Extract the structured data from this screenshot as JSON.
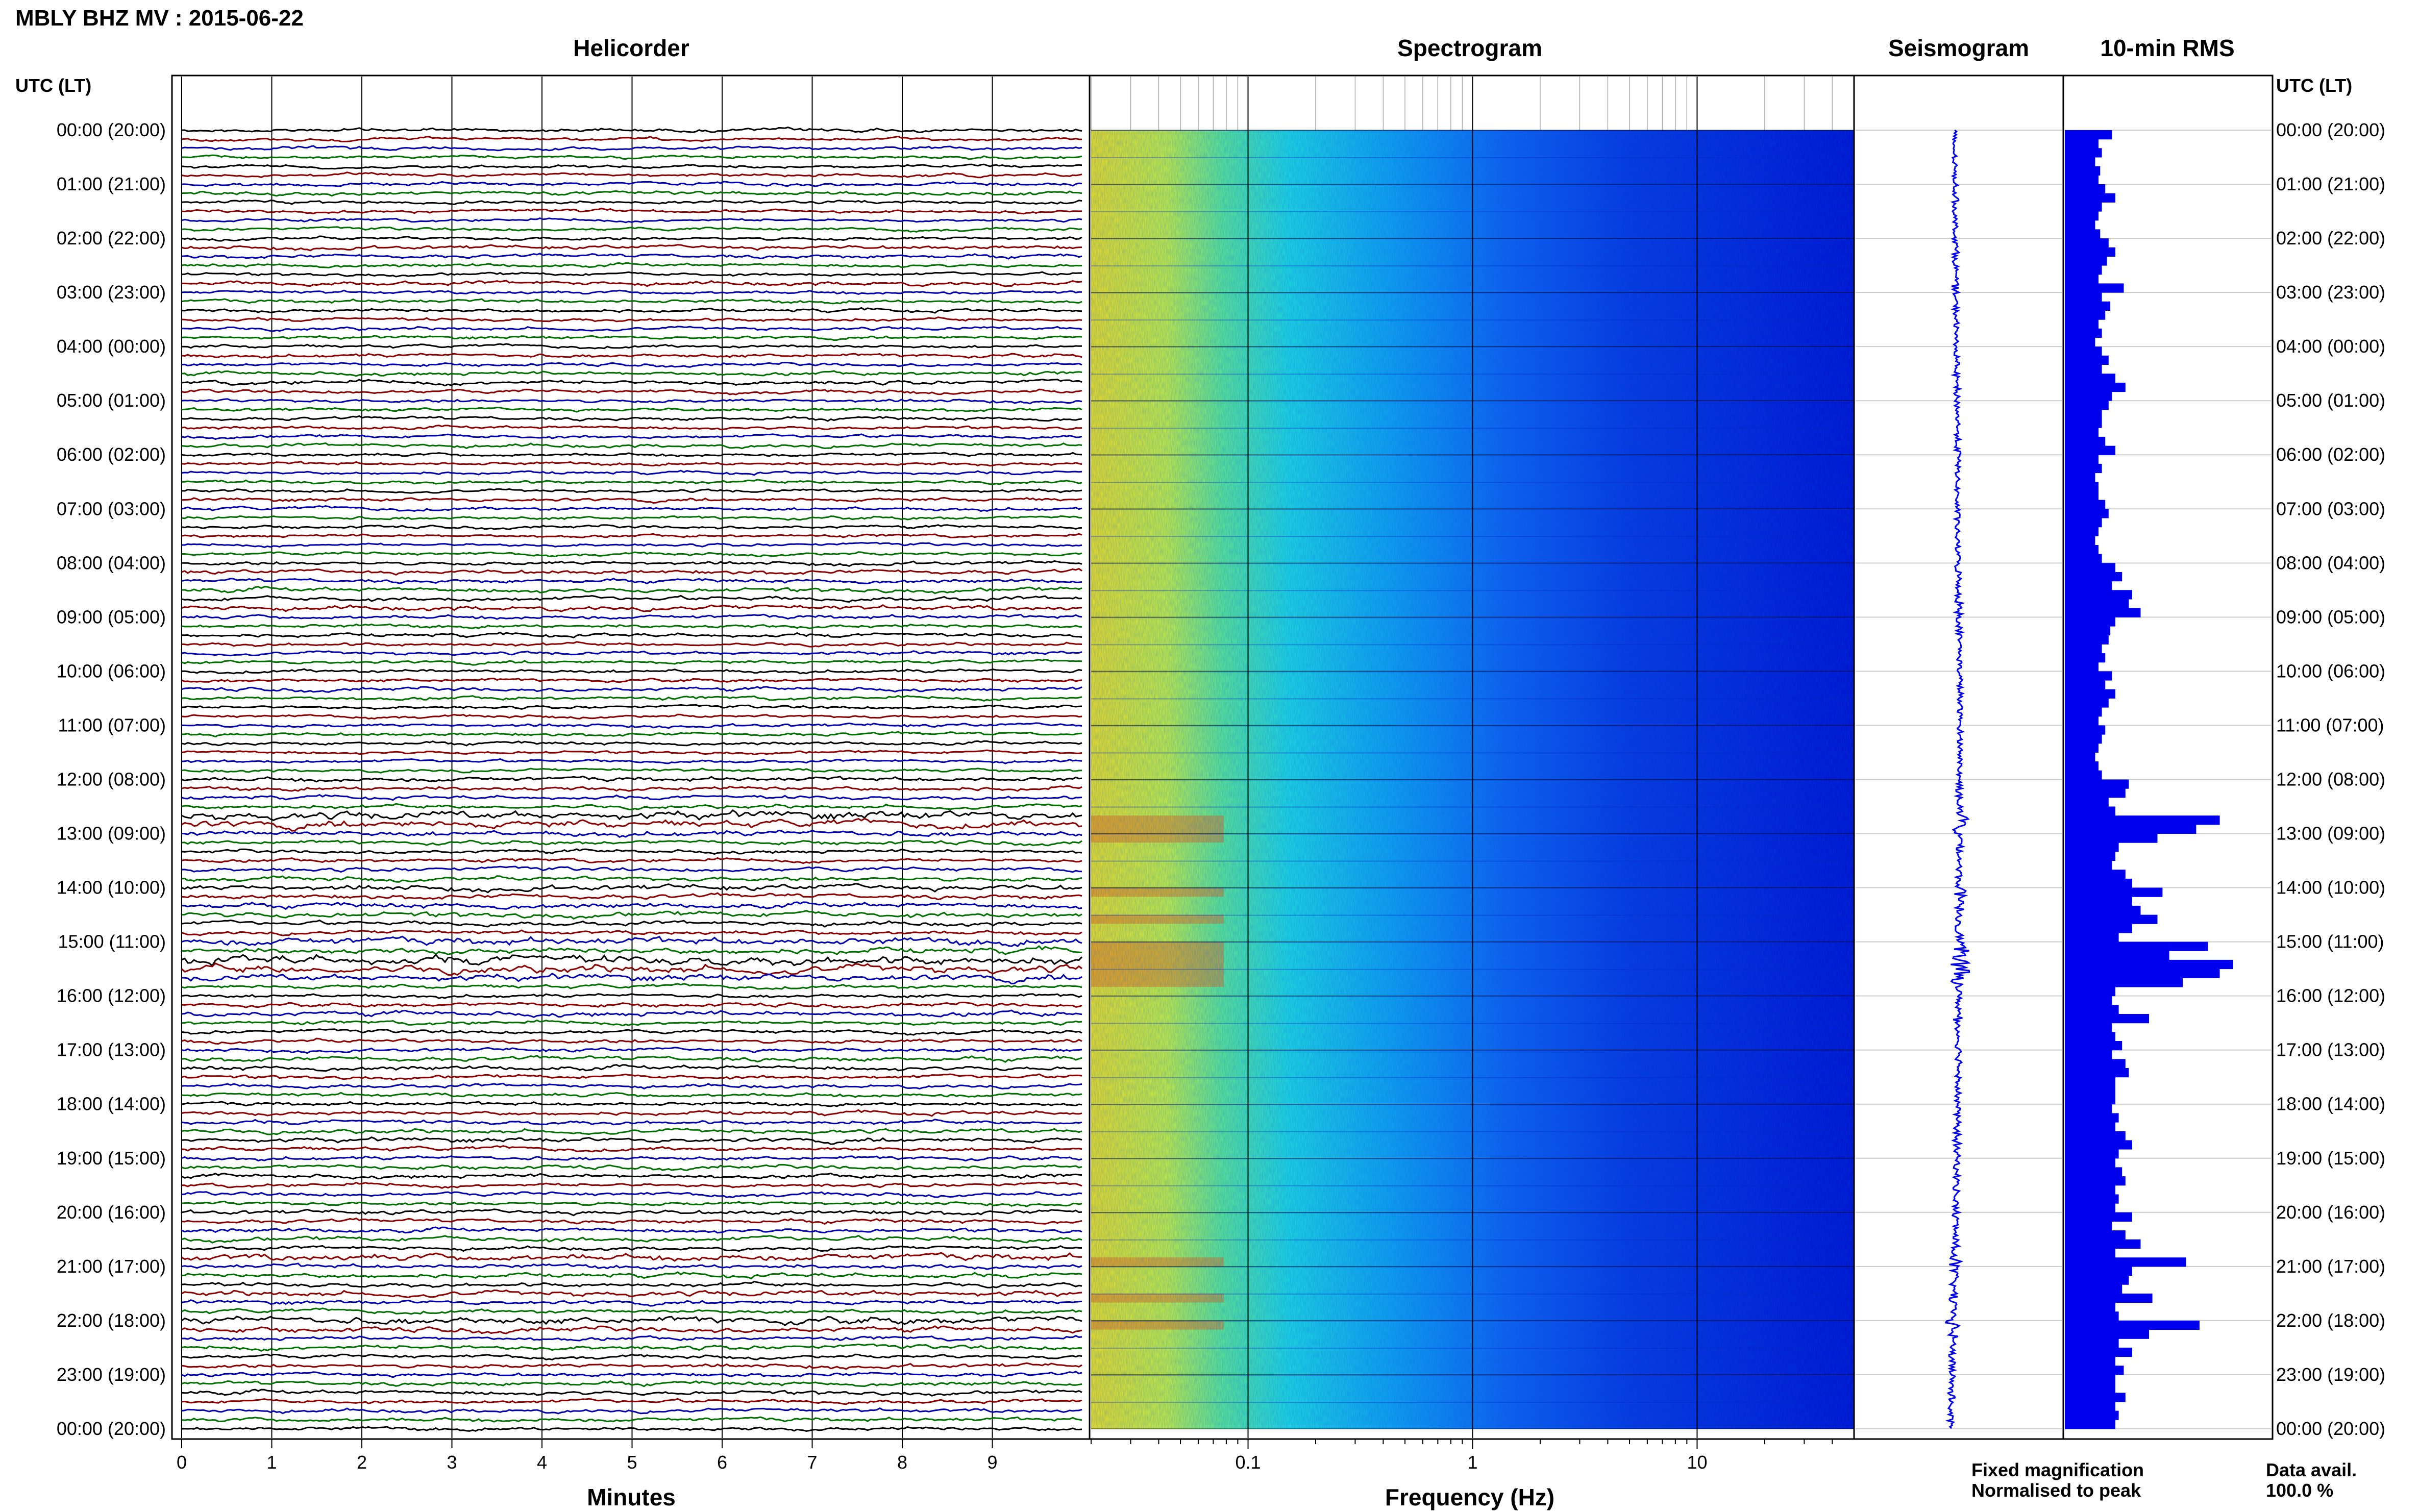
{
  "title": "MBLY BHZ MV : 2015-06-22",
  "time_axis_label": "UTC (LT)",
  "time_labels": [
    "00:00 (20:00)",
    "01:00 (21:00)",
    "02:00 (22:00)",
    "03:00 (23:00)",
    "04:00 (00:00)",
    "05:00 (01:00)",
    "06:00 (02:00)",
    "07:00 (03:00)",
    "08:00 (04:00)",
    "09:00 (05:00)",
    "10:00 (06:00)",
    "11:00 (07:00)",
    "12:00 (08:00)",
    "13:00 (09:00)",
    "14:00 (10:00)",
    "15:00 (11:00)",
    "16:00 (12:00)",
    "17:00 (13:00)",
    "18:00 (14:00)",
    "19:00 (15:00)",
    "20:00 (16:00)",
    "21:00 (17:00)",
    "22:00 (18:00)",
    "23:00 (19:00)",
    "00:00 (20:00)"
  ],
  "panels": {
    "helicorder": "Helicorder",
    "spectrogram": "Spectrogram",
    "seismogram": "Seismogram",
    "rms": "10-min RMS"
  },
  "helicorder_xlabel": "Minutes",
  "helicorder_xticks": [
    "0",
    "1",
    "2",
    "3",
    "4",
    "5",
    "6",
    "7",
    "8",
    "9"
  ],
  "spectrogram_xlabel": "Frequency (Hz)",
  "spectrogram_xticks": [
    "0.1",
    "1",
    "10"
  ],
  "legend": {
    "fixed": "Fixed magnification",
    "normalised": "Normalised to peak",
    "fixed_color": "#1010e0",
    "normalised_color": "#e01010"
  },
  "data_avail_label": "Data avail.",
  "data_avail_value": "100.0 %",
  "trace_colors": [
    "#000000",
    "#8b0000",
    "#0000b0",
    "#007000"
  ],
  "chart_data": [
    {
      "type": "line",
      "panel": "helicorder",
      "x_range_minutes": [
        0,
        10
      ],
      "rows_per_hour": 6,
      "hours": 24,
      "notes": "stacked 10-minute seismic traces, colour cycling black/red/blue/green"
    },
    {
      "type": "heatmap",
      "panel": "spectrogram",
      "x_scale": "log",
      "x_range_hz": [
        0.02,
        50
      ],
      "colormap": "jet"
    },
    {
      "type": "bar",
      "panel": "10-min RMS",
      "orientation": "horizontal",
      "bar_color": "#0000ee",
      "values": [
        0.28,
        0.2,
        0.22,
        0.18,
        0.21,
        0.2,
        0.24,
        0.3,
        0.22,
        0.2,
        0.18,
        0.21,
        0.26,
        0.3,
        0.25,
        0.22,
        0.2,
        0.35,
        0.22,
        0.27,
        0.24,
        0.2,
        0.22,
        0.18,
        0.22,
        0.26,
        0.22,
        0.3,
        0.36,
        0.28,
        0.26,
        0.22,
        0.22,
        0.2,
        0.24,
        0.3,
        0.2,
        0.22,
        0.18,
        0.2,
        0.2,
        0.24,
        0.26,
        0.22,
        0.2,
        0.18,
        0.2,
        0.22,
        0.3,
        0.34,
        0.28,
        0.4,
        0.38,
        0.45,
        0.3,
        0.27,
        0.26,
        0.22,
        0.24,
        0.2,
        0.28,
        0.24,
        0.3,
        0.26,
        0.22,
        0.2,
        0.24,
        0.22,
        0.2,
        0.18,
        0.2,
        0.22,
        0.38,
        0.36,
        0.26,
        0.3,
        0.92,
        0.78,
        0.55,
        0.32,
        0.3,
        0.28,
        0.36,
        0.4,
        0.58,
        0.4,
        0.45,
        0.55,
        0.4,
        0.32,
        0.85,
        0.62,
        1.0,
        0.92,
        0.7,
        0.3,
        0.28,
        0.32,
        0.5,
        0.28,
        0.3,
        0.34,
        0.28,
        0.36,
        0.38,
        0.3,
        0.3,
        0.3,
        0.28,
        0.32,
        0.3,
        0.36,
        0.4,
        0.32,
        0.3,
        0.34,
        0.36,
        0.3,
        0.32,
        0.3,
        0.4,
        0.28,
        0.36,
        0.45,
        0.3,
        0.72,
        0.4,
        0.38,
        0.34,
        0.52,
        0.3,
        0.32,
        0.8,
        0.5,
        0.32,
        0.4,
        0.3,
        0.35,
        0.3,
        0.3,
        0.36,
        0.3,
        0.32,
        0.3
      ]
    }
  ]
}
